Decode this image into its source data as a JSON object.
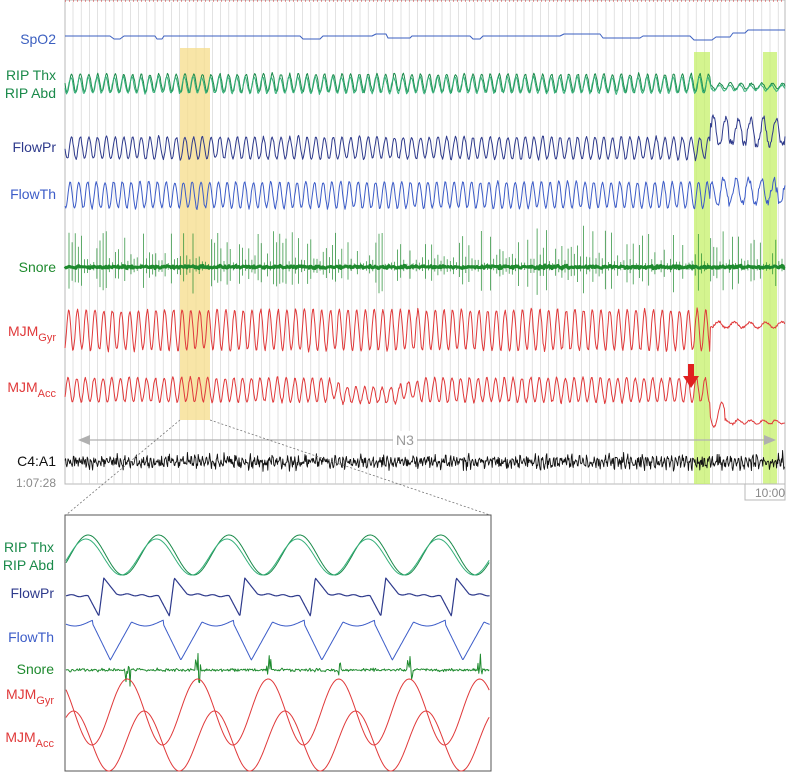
{
  "colors": {
    "spo2": "#3b5fc0",
    "rip_thx": "#1a8a4a",
    "rip_abd": "#35b07a",
    "flowpr": "#2e3a8c",
    "flowth": "#3c5cc8",
    "snore": "#1e8a2e",
    "mjm": "#e0393a",
    "eeg": "#111111",
    "yellow_band": "#f5dc8a",
    "green_band": "#c6f06a",
    "arrow": "#e02020",
    "gridline": "#cfcfcf"
  },
  "main": {
    "channels": [
      {
        "id": "spo2",
        "label": "SpO2"
      },
      {
        "id": "rip",
        "label": "RIP Thx",
        "label2": "RIP Abd"
      },
      {
        "id": "flowpr",
        "label": "FlowPr"
      },
      {
        "id": "flowth",
        "label": "FlowTh"
      },
      {
        "id": "snore",
        "label": "Snore"
      },
      {
        "id": "mjm_gyr",
        "label": "MJM",
        "sub": "Gyr"
      },
      {
        "id": "mjm_acc",
        "label": "MJM",
        "sub": "Acc"
      },
      {
        "id": "eeg",
        "label": "C4:A1"
      }
    ],
    "start_time": "1:07:28",
    "end_time": "10:00",
    "sleep_stage": "N3"
  },
  "inset": {
    "channels": [
      {
        "id": "rip",
        "label": "RIP Thx",
        "label2": "RIP Abd"
      },
      {
        "id": "flowpr",
        "label": "FlowPr"
      },
      {
        "id": "flowth",
        "label": "FlowTh"
      },
      {
        "id": "snore",
        "label": "Snore"
      },
      {
        "id": "mjm_gyr",
        "label": "MJM",
        "sub": "Gyr"
      },
      {
        "id": "mjm_acc",
        "label": "MJM",
        "sub": "Acc"
      }
    ]
  },
  "chart_data": {
    "type": "line",
    "x_range": [
      "1:07:28",
      "10:00"
    ],
    "annotations": [
      {
        "label": "N3",
        "type": "sleep-stage-span"
      },
      {
        "type": "highlight",
        "color": "yellow",
        "note": "zoomed in inset"
      },
      {
        "type": "highlight",
        "color": "green",
        "count": 2
      },
      {
        "type": "arrow",
        "color": "red"
      }
    ],
    "series": [
      {
        "name": "SpO2"
      },
      {
        "name": "RIP Thx"
      },
      {
        "name": "RIP Abd"
      },
      {
        "name": "FlowPr"
      },
      {
        "name": "FlowTh"
      },
      {
        "name": "Snore"
      },
      {
        "name": "MJM Gyr"
      },
      {
        "name": "MJM Acc"
      },
      {
        "name": "C4:A1"
      }
    ]
  }
}
